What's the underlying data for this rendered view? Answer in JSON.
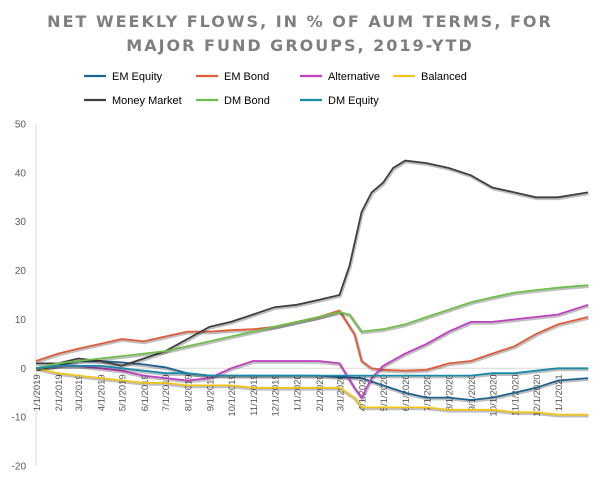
{
  "chart_data": {
    "type": "line",
    "title_lines": [
      "NET WEEKLY FLOWS, IN % OF AUM TERMS, FOR",
      "MAJOR FUND GROUPS, 2019-YTD"
    ],
    "ylim": [
      -20,
      50
    ],
    "yticks": [
      -20,
      -10,
      0,
      10,
      20,
      30,
      40,
      50
    ],
    "xlim": [
      "2019-01-01",
      "2021-02-12"
    ],
    "x_tick_labels": [
      {
        "date": "2019-01-01",
        "label": "1/1/2019"
      },
      {
        "date": "2019-02-01",
        "label": "2/1/2019"
      },
      {
        "date": "2019-03-01",
        "label": "3/1/2019"
      },
      {
        "date": "2019-04-01",
        "label": "4/1/2019"
      },
      {
        "date": "2019-05-01",
        "label": "5/1/2019"
      },
      {
        "date": "2019-06-01",
        "label": "6/1/2019"
      },
      {
        "date": "2019-07-01",
        "label": "7/1/2019"
      },
      {
        "date": "2019-08-01",
        "label": "8/1/2019"
      },
      {
        "date": "2019-09-01",
        "label": "9/1/2019"
      },
      {
        "date": "2019-10-01",
        "label": "10/1/2019"
      },
      {
        "date": "2019-11-01",
        "label": "11/1/2019"
      },
      {
        "date": "2019-12-01",
        "label": "12/1/2019"
      },
      {
        "date": "2020-01-01",
        "label": "1/1/2020"
      },
      {
        "date": "2020-02-01",
        "label": "2/1/2020"
      },
      {
        "date": "2020-03-01",
        "label": "3/1/2020"
      },
      {
        "date": "2020-04-01",
        "label": "4/1/2020"
      },
      {
        "date": "2020-05-01",
        "label": "5/1/2020"
      },
      {
        "date": "2020-06-01",
        "label": "6/1/2020"
      },
      {
        "date": "2020-07-01",
        "label": "7/1/2020"
      },
      {
        "date": "2020-08-01",
        "label": "8/1/2020"
      },
      {
        "date": "2020-09-01",
        "label": "9/1/2020"
      },
      {
        "date": "2020-10-01",
        "label": "10/1/2020"
      },
      {
        "date": "2020-11-01",
        "label": "11/1/2020"
      },
      {
        "date": "2020-12-01",
        "label": "12/1/2020"
      },
      {
        "date": "2021-01-01",
        "label": "1/1/2021"
      }
    ],
    "grid": false,
    "legend_position": "top",
    "series": [
      {
        "name": "EM Equity",
        "color": "#1f6391",
        "points": [
          [
            "2019-01-01",
            0
          ],
          [
            "2019-02-01",
            0.5
          ],
          [
            "2019-03-01",
            1.5
          ],
          [
            "2019-04-01",
            1.5
          ],
          [
            "2019-05-01",
            1.2
          ],
          [
            "2019-06-01",
            0.8
          ],
          [
            "2019-07-01",
            0.2
          ],
          [
            "2019-08-01",
            -1
          ],
          [
            "2019-09-01",
            -1.5
          ],
          [
            "2019-10-01",
            -1.5
          ],
          [
            "2019-11-01",
            -1.5
          ],
          [
            "2019-12-01",
            -1.5
          ],
          [
            "2020-01-01",
            -1.5
          ],
          [
            "2020-02-01",
            -1.5
          ],
          [
            "2020-03-01",
            -1.8
          ],
          [
            "2020-04-01",
            -2
          ],
          [
            "2020-05-01",
            -3.5
          ],
          [
            "2020-06-01",
            -5
          ],
          [
            "2020-07-01",
            -6
          ],
          [
            "2020-08-01",
            -6
          ],
          [
            "2020-09-01",
            -6.5
          ],
          [
            "2020-10-01",
            -6
          ],
          [
            "2020-11-01",
            -5
          ],
          [
            "2020-12-01",
            -4
          ],
          [
            "2021-01-01",
            -2.5
          ],
          [
            "2021-02-12",
            -2
          ]
        ]
      },
      {
        "name": "EM Bond",
        "color": "#e05c3a",
        "points": [
          [
            "2019-01-01",
            1.5
          ],
          [
            "2019-02-01",
            3
          ],
          [
            "2019-03-01",
            4
          ],
          [
            "2019-04-01",
            5
          ],
          [
            "2019-05-01",
            6
          ],
          [
            "2019-06-01",
            5.5
          ],
          [
            "2019-07-01",
            6.5
          ],
          [
            "2019-08-01",
            7.5
          ],
          [
            "2019-09-01",
            7.5
          ],
          [
            "2019-10-01",
            7.8
          ],
          [
            "2019-11-01",
            8
          ],
          [
            "2019-12-01",
            8.5
          ],
          [
            "2020-01-01",
            9.5
          ],
          [
            "2020-02-01",
            10.5
          ],
          [
            "2020-03-01",
            11.8
          ],
          [
            "2020-03-22",
            7
          ],
          [
            "2020-04-01",
            1.5
          ],
          [
            "2020-04-15",
            0
          ],
          [
            "2020-05-01",
            -0.3
          ],
          [
            "2020-06-01",
            -0.5
          ],
          [
            "2020-07-01",
            -0.3
          ],
          [
            "2020-08-01",
            1
          ],
          [
            "2020-09-01",
            1.5
          ],
          [
            "2020-10-01",
            3
          ],
          [
            "2020-11-01",
            4.5
          ],
          [
            "2020-12-01",
            7
          ],
          [
            "2021-01-01",
            9
          ],
          [
            "2021-02-12",
            10.5
          ]
        ]
      },
      {
        "name": "Alternative",
        "color": "#c040c0",
        "points": [
          [
            "2019-01-01",
            0
          ],
          [
            "2019-02-01",
            0.5
          ],
          [
            "2019-03-01",
            0.5
          ],
          [
            "2019-04-01",
            0
          ],
          [
            "2019-05-01",
            -0.5
          ],
          [
            "2019-06-01",
            -1.5
          ],
          [
            "2019-07-01",
            -2
          ],
          [
            "2019-08-01",
            -2.5
          ],
          [
            "2019-09-01",
            -2
          ],
          [
            "2019-10-01",
            0
          ],
          [
            "2019-11-01",
            1.5
          ],
          [
            "2019-12-01",
            1.5
          ],
          [
            "2020-01-01",
            1.5
          ],
          [
            "2020-02-01",
            1.5
          ],
          [
            "2020-03-01",
            1
          ],
          [
            "2020-03-22",
            -4
          ],
          [
            "2020-04-01",
            -6
          ],
          [
            "2020-04-15",
            -2
          ],
          [
            "2020-05-01",
            0.5
          ],
          [
            "2020-06-01",
            3
          ],
          [
            "2020-07-01",
            5
          ],
          [
            "2020-08-01",
            7.5
          ],
          [
            "2020-09-01",
            9.5
          ],
          [
            "2020-10-01",
            9.5
          ],
          [
            "2020-11-01",
            10
          ],
          [
            "2020-12-01",
            10.5
          ],
          [
            "2021-01-01",
            11
          ],
          [
            "2021-02-12",
            13
          ]
        ]
      },
      {
        "name": "Balanced",
        "color": "#f0c419",
        "points": [
          [
            "2019-01-01",
            0
          ],
          [
            "2019-02-01",
            -1
          ],
          [
            "2019-03-01",
            -1.5
          ],
          [
            "2019-04-01",
            -2
          ],
          [
            "2019-05-01",
            -2.5
          ],
          [
            "2019-06-01",
            -3
          ],
          [
            "2019-07-01",
            -3
          ],
          [
            "2019-08-01",
            -3.5
          ],
          [
            "2019-09-01",
            -3.5
          ],
          [
            "2019-10-01",
            -3.5
          ],
          [
            "2019-11-01",
            -4
          ],
          [
            "2019-12-01",
            -4
          ],
          [
            "2020-01-01",
            -4
          ],
          [
            "2020-02-01",
            -4
          ],
          [
            "2020-03-01",
            -4
          ],
          [
            "2020-03-22",
            -6
          ],
          [
            "2020-04-01",
            -8
          ],
          [
            "2020-05-01",
            -8
          ],
          [
            "2020-06-01",
            -8
          ],
          [
            "2020-07-01",
            -8
          ],
          [
            "2020-08-01",
            -8.5
          ],
          [
            "2020-09-01",
            -8.5
          ],
          [
            "2020-10-01",
            -8.5
          ],
          [
            "2020-11-01",
            -9
          ],
          [
            "2020-12-01",
            -9
          ],
          [
            "2021-01-01",
            -9.5
          ],
          [
            "2021-02-12",
            -9.5
          ]
        ]
      },
      {
        "name": "Money Market",
        "color": "#404040",
        "points": [
          [
            "2019-01-01",
            1
          ],
          [
            "2019-02-01",
            1
          ],
          [
            "2019-03-01",
            2
          ],
          [
            "2019-04-01",
            1.5
          ],
          [
            "2019-05-01",
            0.5
          ],
          [
            "2019-06-01",
            2
          ],
          [
            "2019-07-01",
            3.5
          ],
          [
            "2019-08-01",
            6
          ],
          [
            "2019-09-01",
            8.5
          ],
          [
            "2019-10-01",
            9.5
          ],
          [
            "2019-11-01",
            11
          ],
          [
            "2019-12-01",
            12.5
          ],
          [
            "2020-01-01",
            13
          ],
          [
            "2020-02-01",
            14
          ],
          [
            "2020-03-01",
            15
          ],
          [
            "2020-03-15",
            21
          ],
          [
            "2020-04-01",
            32
          ],
          [
            "2020-04-15",
            36
          ],
          [
            "2020-05-01",
            38
          ],
          [
            "2020-05-15",
            41
          ],
          [
            "2020-06-01",
            42.5
          ],
          [
            "2020-07-01",
            42
          ],
          [
            "2020-08-01",
            41
          ],
          [
            "2020-09-01",
            39.5
          ],
          [
            "2020-10-01",
            37
          ],
          [
            "2020-11-01",
            36
          ],
          [
            "2020-12-01",
            35
          ],
          [
            "2021-01-01",
            35
          ],
          [
            "2021-02-12",
            36
          ]
        ]
      },
      {
        "name": "DM Bond",
        "color": "#6ec04a",
        "points": [
          [
            "2019-01-01",
            0
          ],
          [
            "2019-02-01",
            1
          ],
          [
            "2019-03-01",
            1.5
          ],
          [
            "2019-04-01",
            2
          ],
          [
            "2019-05-01",
            2.5
          ],
          [
            "2019-06-01",
            3
          ],
          [
            "2019-07-01",
            3.5
          ],
          [
            "2019-08-01",
            4.5
          ],
          [
            "2019-09-01",
            5.5
          ],
          [
            "2019-10-01",
            6.5
          ],
          [
            "2019-11-01",
            7.5
          ],
          [
            "2019-12-01",
            8.5
          ],
          [
            "2020-01-01",
            9.5
          ],
          [
            "2020-02-01",
            10.5
          ],
          [
            "2020-03-01",
            11.5
          ],
          [
            "2020-03-15",
            11
          ],
          [
            "2020-04-01",
            7.5
          ],
          [
            "2020-05-01",
            8
          ],
          [
            "2020-06-01",
            9
          ],
          [
            "2020-07-01",
            10.5
          ],
          [
            "2020-08-01",
            12
          ],
          [
            "2020-09-01",
            13.5
          ],
          [
            "2020-10-01",
            14.5
          ],
          [
            "2020-11-01",
            15.5
          ],
          [
            "2020-12-01",
            16
          ],
          [
            "2021-01-01",
            16.5
          ],
          [
            "2021-02-12",
            17
          ]
        ]
      },
      {
        "name": "DM Equity",
        "color": "#1a8aa8",
        "points": [
          [
            "2019-01-01",
            0
          ],
          [
            "2019-02-01",
            0.5
          ],
          [
            "2019-03-01",
            0.5
          ],
          [
            "2019-04-01",
            0.5
          ],
          [
            "2019-05-01",
            0
          ],
          [
            "2019-06-01",
            -0.5
          ],
          [
            "2019-07-01",
            -1
          ],
          [
            "2019-08-01",
            -1
          ],
          [
            "2019-09-01",
            -1.5
          ],
          [
            "2019-10-01",
            -1.5
          ],
          [
            "2019-11-01",
            -1.5
          ],
          [
            "2019-12-01",
            -1.5
          ],
          [
            "2020-01-01",
            -1.5
          ],
          [
            "2020-02-01",
            -1.5
          ],
          [
            "2020-03-01",
            -1.5
          ],
          [
            "2020-04-01",
            -1.5
          ],
          [
            "2020-05-01",
            -1.5
          ],
          [
            "2020-06-01",
            -1.5
          ],
          [
            "2020-07-01",
            -1.5
          ],
          [
            "2020-08-01",
            -1.5
          ],
          [
            "2020-09-01",
            -1.5
          ],
          [
            "2020-10-01",
            -1
          ],
          [
            "2020-11-01",
            -1
          ],
          [
            "2020-12-01",
            -0.5
          ],
          [
            "2021-01-01",
            0
          ],
          [
            "2021-02-12",
            0
          ]
        ]
      }
    ]
  }
}
